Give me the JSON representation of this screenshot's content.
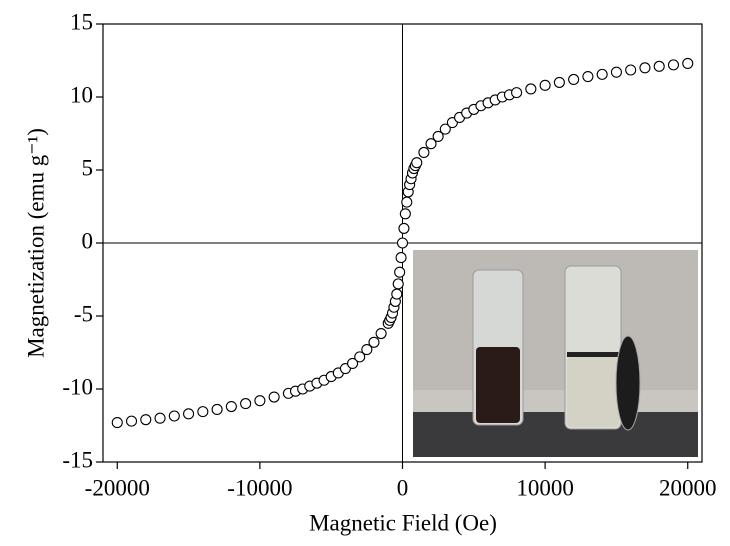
{
  "chart_data": {
    "type": "scatter",
    "xlabel": "Magnetic Field (Oe)",
    "ylabel": "Magnetization (emu g⁻¹)",
    "xlim": [
      -21000,
      21000
    ],
    "ylim": [
      -15,
      15
    ],
    "xticks": [
      -20000,
      -10000,
      0,
      10000,
      20000
    ],
    "yticks": [
      -15,
      -10,
      -5,
      0,
      5,
      10,
      15
    ],
    "color": "#000000",
    "x": [
      -20000,
      -19000,
      -18000,
      -17000,
      -16000,
      -15000,
      -14000,
      -13000,
      -12000,
      -11000,
      -10000,
      -9000,
      -8000,
      -7500,
      -7000,
      -6500,
      -6000,
      -5500,
      -5000,
      -4500,
      -4000,
      -3500,
      -3000,
      -2500,
      -2000,
      -1500,
      -1000,
      -900,
      -800,
      -700,
      -600,
      -500,
      -400,
      -300,
      -200,
      -100,
      0,
      100,
      200,
      300,
      400,
      500,
      600,
      700,
      800,
      900,
      1000,
      1500,
      2000,
      2500,
      3000,
      3500,
      4000,
      4500,
      5000,
      5500,
      6000,
      6500,
      7000,
      7500,
      8000,
      9000,
      10000,
      11000,
      12000,
      13000,
      14000,
      15000,
      16000,
      17000,
      18000,
      19000,
      20000
    ],
    "y": [
      -12.3,
      -12.2,
      -12.1,
      -12.0,
      -11.85,
      -11.7,
      -11.55,
      -11.4,
      -11.2,
      -11.0,
      -10.8,
      -10.55,
      -10.3,
      -10.15,
      -10.0,
      -9.8,
      -9.6,
      -9.4,
      -9.15,
      -8.9,
      -8.6,
      -8.25,
      -7.8,
      -7.3,
      -6.8,
      -6.2,
      -5.5,
      -5.3,
      -5.1,
      -4.8,
      -4.4,
      -4.0,
      -3.5,
      -2.8,
      -2.0,
      -1.0,
      0,
      1.0,
      2.0,
      2.8,
      3.5,
      4.0,
      4.4,
      4.8,
      5.1,
      5.3,
      5.5,
      6.2,
      6.8,
      7.3,
      7.8,
      8.25,
      8.6,
      8.9,
      9.15,
      9.4,
      9.6,
      9.8,
      10.0,
      10.15,
      10.3,
      10.55,
      10.8,
      11.0,
      11.2,
      11.4,
      11.55,
      11.7,
      11.85,
      12.0,
      12.1,
      12.2,
      12.3
    ]
  }
}
